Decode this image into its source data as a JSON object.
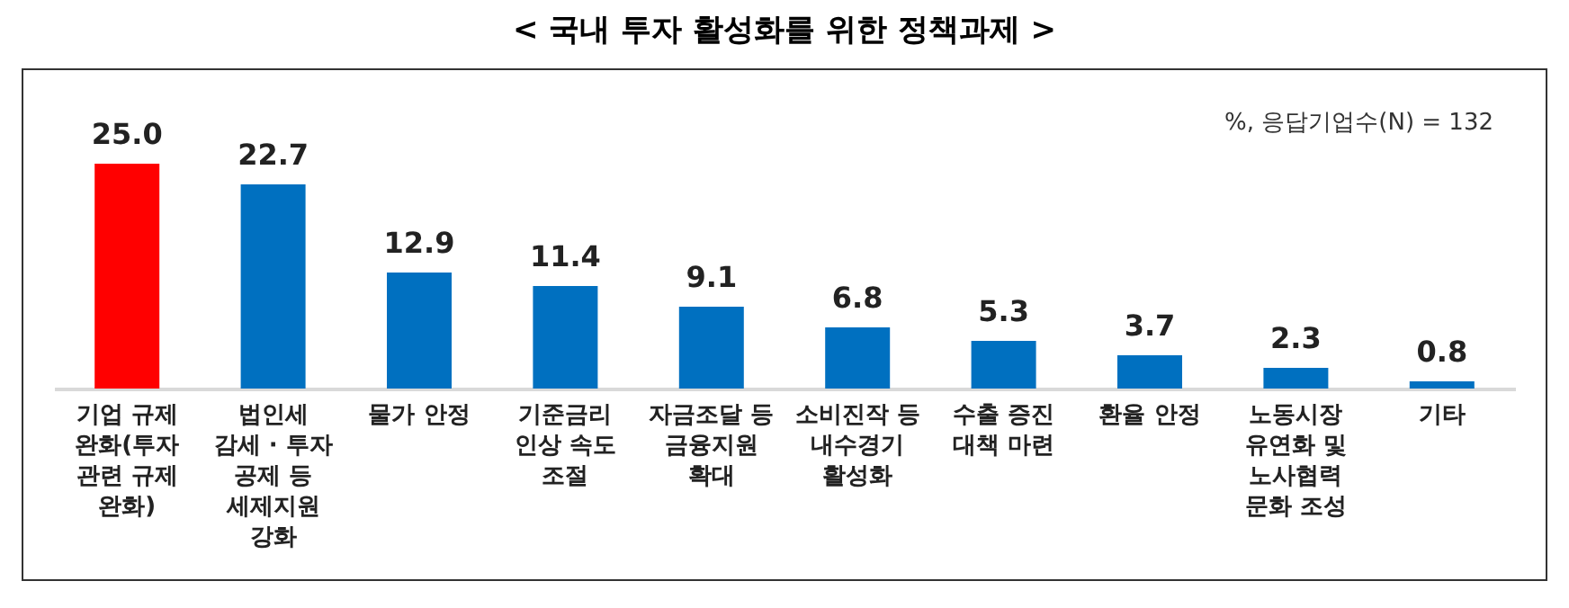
{
  "chart_data": {
    "type": "bar",
    "title": "< 국내 투자 활성화를 위한 정책과제 >",
    "categories": [
      "기업 규제\n완화(투자\n관련 규제\n완화)",
      "법인세\n감세 · 투자\n공제 등\n세제지원\n강화",
      "물가 안정",
      "기준금리\n인상 속도\n조절",
      "자금조달 등\n금융지원\n확대",
      "소비진작 등\n내수경기\n활성화",
      "수출 증진\n대책 마련",
      "환율 안정",
      "노동시장\n유연화 및\n노사협력\n문화 조성",
      "기타"
    ],
    "values": [
      25.0,
      22.7,
      12.9,
      11.4,
      9.1,
      6.8,
      5.3,
      3.7,
      2.3,
      0.8
    ],
    "colors": [
      "#ff0000",
      "#0070c0",
      "#0070c0",
      "#0070c0",
      "#0070c0",
      "#0070c0",
      "#0070c0",
      "#0070c0",
      "#0070c0",
      "#0070c0"
    ],
    "value_labels": [
      "25.0",
      "22.7",
      "12.9",
      "11.4",
      "9.1",
      "6.8",
      "5.3",
      "3.7",
      "2.3",
      "0.8"
    ],
    "annotations": [
      "%, 응답기업수(N) = 132"
    ]
  }
}
